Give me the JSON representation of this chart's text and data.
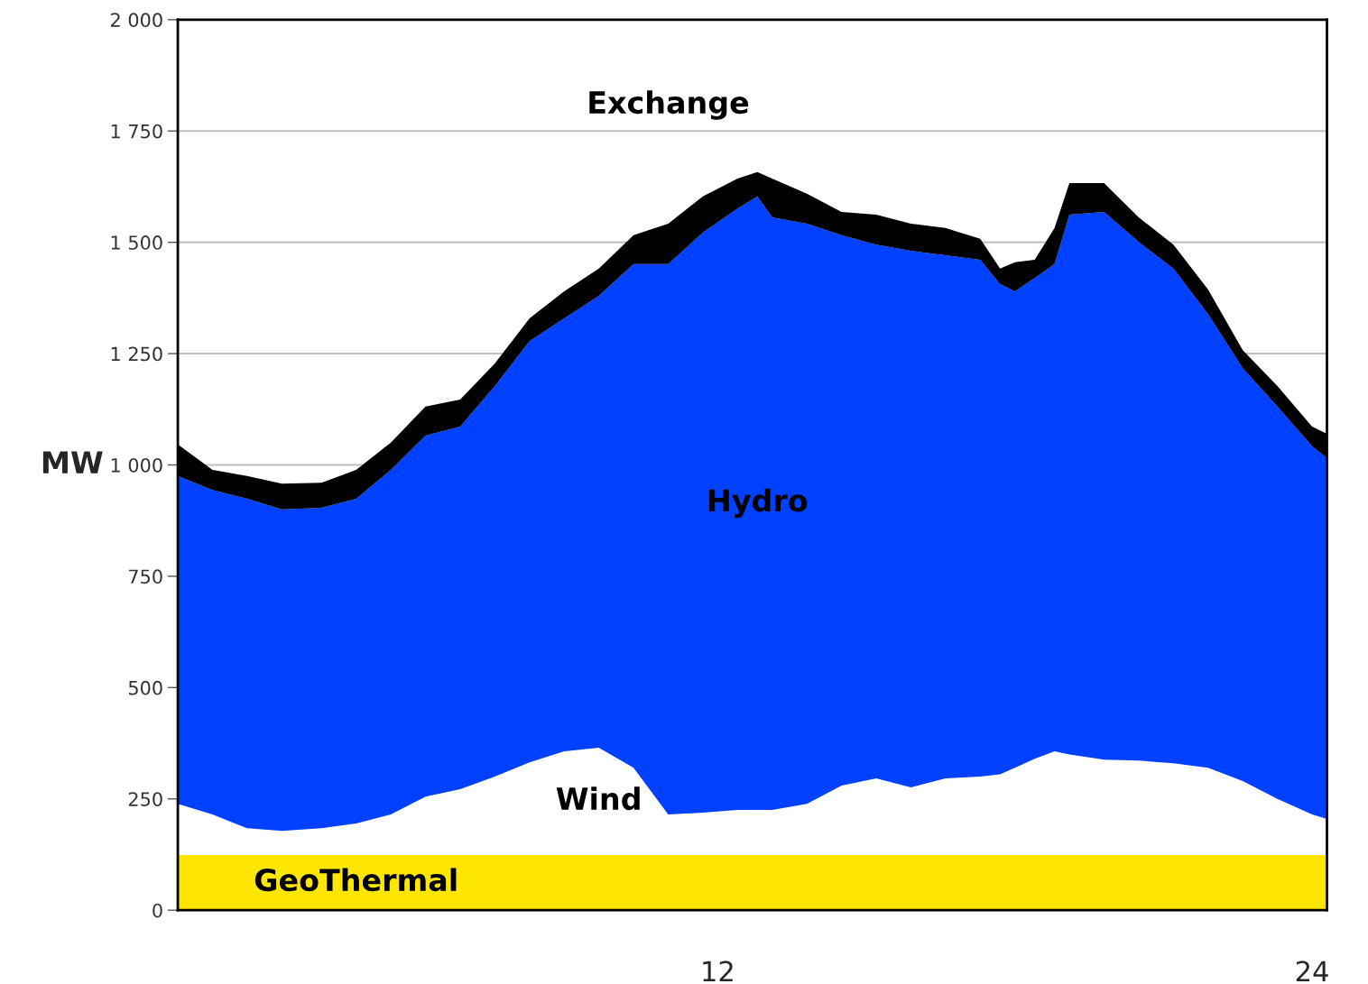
{
  "chart_data": {
    "type": "area",
    "stacked": true,
    "ylabel": "MW",
    "x": [
      1.1,
      1.8,
      2.5,
      3.2,
      4,
      4.7,
      5.4,
      6.1,
      6.8,
      7.5,
      8.2,
      8.9,
      9.6,
      10.3,
      11,
      11.7,
      12.4,
      12.8,
      13.1,
      13.8,
      14.5,
      15.2,
      15.9,
      16.6,
      17.3,
      17.7,
      18,
      18.4,
      18.8,
      19.1,
      19.8,
      20.5,
      21.2,
      21.9,
      22.6,
      23.3,
      24,
      24.3
    ],
    "series": [
      {
        "name": "GeoThermal",
        "color": "#ffe600",
        "values": [
          124,
          124,
          124,
          124,
          124,
          124,
          124,
          124,
          124,
          124,
          124,
          124,
          124,
          124,
          124,
          124,
          124,
          124,
          124,
          124,
          124,
          124,
          124,
          124,
          124,
          124,
          124,
          124,
          124,
          124,
          124,
          124,
          124,
          124,
          124,
          124,
          124,
          124
        ]
      },
      {
        "name": "Wind",
        "color": "#ffffff",
        "values": [
          115,
          91,
          60,
          54,
          60,
          71,
          91,
          131,
          148,
          176,
          208,
          233,
          241,
          196,
          91,
          95,
          101,
          101,
          101,
          115,
          156,
          172,
          152,
          172,
          176,
          181,
          196,
          216,
          233,
          226,
          214,
          212,
          206,
          196,
          166,
          126,
          91,
          81
        ]
      },
      {
        "name": "Hydro",
        "color": "#0040ff",
        "values": [
          736,
          729,
          740,
          722,
          720,
          729,
          774,
          811,
          814,
          877,
          946,
          972,
          1015,
          1131,
          1236,
          1303,
          1351,
          1378,
          1331,
          1303,
          1236,
          1199,
          1205,
          1175,
          1161,
          1101,
          1070,
          1080,
          1094,
          1212,
          1230,
          1165,
          1111,
          1019,
          927,
          881,
          827,
          810
        ]
      },
      {
        "name": "Exchange",
        "color": "#000000",
        "values": [
          71,
          45,
          51,
          58,
          56,
          65,
          61,
          65,
          61,
          51,
          51,
          61,
          61,
          65,
          91,
          81,
          67,
          55,
          87,
          67,
          52,
          67,
          61,
          61,
          47,
          35,
          65,
          41,
          81,
          71,
          65,
          55,
          54,
          55,
          41,
          46,
          44,
          55
        ]
      }
    ],
    "xlim": [
      1.1,
      24.3
    ],
    "xticks": [
      12,
      24
    ],
    "ylim": [
      0,
      2000
    ],
    "yticks": [
      {
        "value": 0,
        "label": "0"
      },
      {
        "value": 250,
        "label": "250"
      },
      {
        "value": 500,
        "label": "500"
      },
      {
        "value": 750,
        "label": "750"
      },
      {
        "value": 1000,
        "label": "1 000"
      },
      {
        "value": 1250,
        "label": "1 250"
      },
      {
        "value": 1500,
        "label": "1 500"
      },
      {
        "value": 1750,
        "label": "1 750"
      },
      {
        "value": 2000,
        "label": "2 000"
      }
    ],
    "grid": "y"
  }
}
